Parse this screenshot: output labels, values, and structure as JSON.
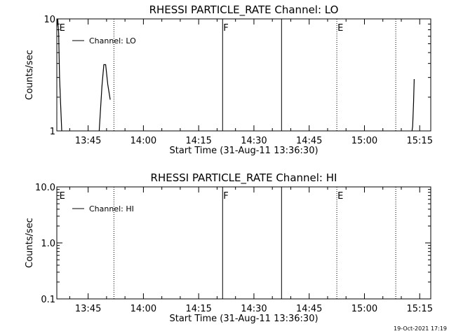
{
  "chart_data": [
    {
      "type": "line",
      "title": "RHESSI PARTICLE_RATE Channel: LO",
      "xlabel": "Start Time (31-Aug-11 13:36:30)",
      "ylabel": "Counts/sec",
      "y_scale": "log",
      "ylim": [
        1,
        10
      ],
      "y_ticks": [
        1,
        10
      ],
      "y_tick_labels": [
        "1",
        "10"
      ],
      "xlim": [
        "13:36:30",
        "15:18:00"
      ],
      "x_ticks": [
        "13:45",
        "14:00",
        "14:15",
        "14:30",
        "14:45",
        "15:00",
        "15:15"
      ],
      "grid": false,
      "legend_position": "top-left",
      "series": [
        {
          "name": "Channel: LO",
          "segments": [
            {
              "x": [
                "13:36:30",
                "13:36:45",
                "13:37:00",
                "13:37:15",
                "13:37:30",
                "13:37:50"
              ],
              "y": [
                8.5,
                10,
                7.5,
                3.0,
                1.8,
                1.0
              ]
            },
            {
              "x": [
                "13:48:00",
                "13:48:45",
                "13:49:15",
                "13:49:45",
                "13:50:20",
                "13:51:00"
              ],
              "y": [
                1.0,
                2.5,
                3.9,
                3.9,
                2.6,
                1.9
              ]
            },
            {
              "x": [
                "15:12:55",
                "15:13:05",
                "15:13:20",
                "15:13:30"
              ],
              "y": [
                1.0,
                1.1,
                1.8,
                2.9
              ]
            }
          ]
        }
      ],
      "markers": [
        {
          "label": "E",
          "time": "13:37:00",
          "style": "none"
        },
        {
          "label": "",
          "time": "13:52:00",
          "style": "dotted"
        },
        {
          "label": "F",
          "time": "14:21:30",
          "style": "solid"
        },
        {
          "label": "",
          "time": "14:37:30",
          "style": "solid"
        },
        {
          "label": "E",
          "time": "14:52:30",
          "style": "dotted"
        },
        {
          "label": "",
          "time": "15:08:30",
          "style": "dotted"
        }
      ]
    },
    {
      "type": "line",
      "title": "RHESSI PARTICLE_RATE Channel: HI",
      "xlabel": "Start Time (31-Aug-11 13:36:30)",
      "ylabel": "Counts/sec",
      "y_scale": "log",
      "ylim": [
        0.1,
        10
      ],
      "y_ticks": [
        0.1,
        1,
        10
      ],
      "y_tick_labels": [
        "0.1",
        "1.0",
        "10.0"
      ],
      "xlim": [
        "13:36:30",
        "15:18:00"
      ],
      "x_ticks": [
        "13:45",
        "14:00",
        "14:15",
        "14:30",
        "14:45",
        "15:00",
        "15:15"
      ],
      "grid": false,
      "legend_position": "top-left",
      "series": [
        {
          "name": "Channel: HI",
          "segments": []
        }
      ],
      "markers": [
        {
          "label": "E",
          "time": "13:37:00",
          "style": "none"
        },
        {
          "label": "",
          "time": "13:52:00",
          "style": "dotted"
        },
        {
          "label": "F",
          "time": "14:21:30",
          "style": "solid"
        },
        {
          "label": "",
          "time": "14:37:30",
          "style": "solid"
        },
        {
          "label": "E",
          "time": "14:52:30",
          "style": "dotted"
        },
        {
          "label": "",
          "time": "15:08:30",
          "style": "dotted"
        }
      ]
    }
  ],
  "timestamp": "19-Oct-2021 17:19",
  "colors": {
    "background": "#ffffff",
    "ink": "#000000"
  }
}
